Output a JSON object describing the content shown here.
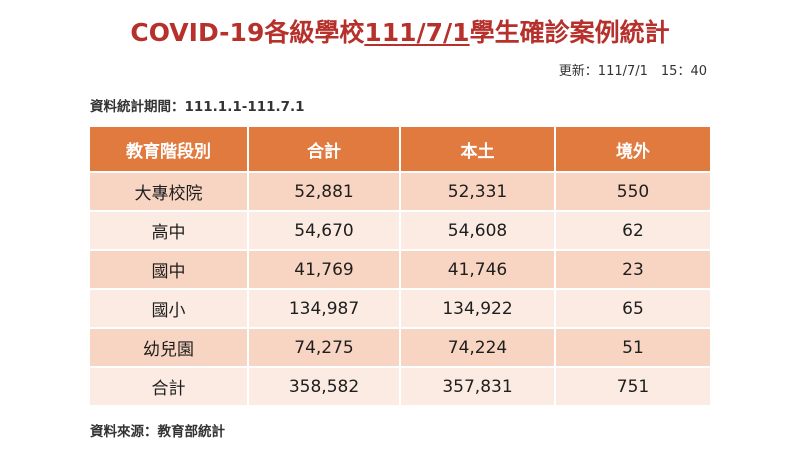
{
  "title": {
    "prefix": "COVID-19各級學校",
    "date": "111/7/1",
    "suffix": "學生確診案例統計"
  },
  "updated": "更新：111/7/1　15：40",
  "period": "資料統計期間：111.1.1-111.7.1",
  "source": "資料來源：教育部統計",
  "table": {
    "headers": [
      "教育階段別",
      "合計",
      "本土",
      "境外"
    ],
    "rows": [
      [
        "大專校院",
        "52,881",
        "52,331",
        "550"
      ],
      [
        "高中",
        "54,670",
        "54,608",
        "62"
      ],
      [
        "國中",
        "41,769",
        "41,746",
        "23"
      ],
      [
        "國小",
        "134,987",
        "134,922",
        "65"
      ],
      [
        "幼兒園",
        "74,275",
        "74,224",
        "51"
      ],
      [
        "合計",
        "358,582",
        "357,831",
        "751"
      ]
    ]
  },
  "colors": {
    "title": "#b7312c",
    "header_bg": "#e07a3e",
    "row_dark": "#f8d5c2",
    "row_light": "#fbebe3"
  }
}
